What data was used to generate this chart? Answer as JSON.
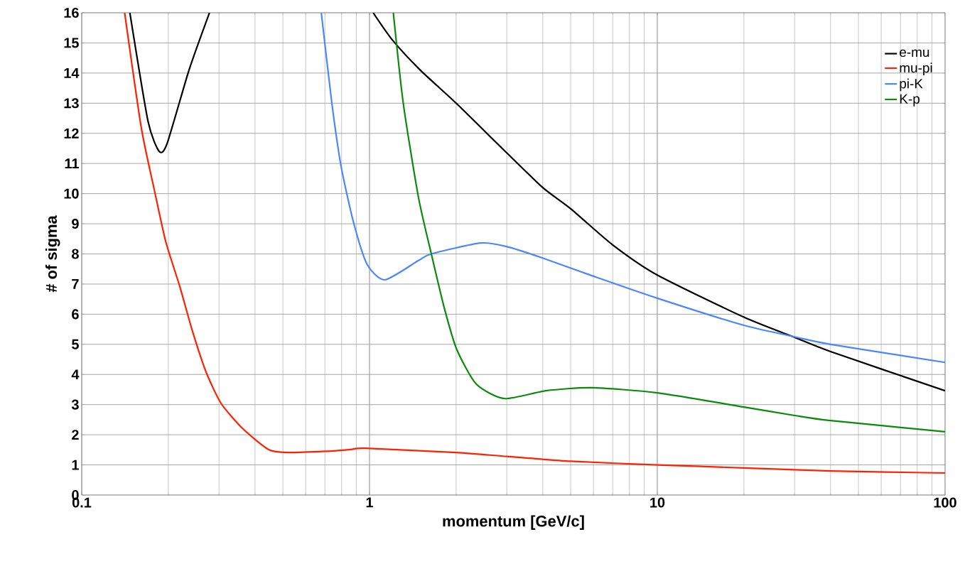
{
  "chart_data": {
    "type": "line",
    "xlabel": "momentum [GeV/c]",
    "ylabel": "# of sigma",
    "log": "x",
    "grid": true,
    "legend": "top right",
    "marker": "none",
    "line_style": "solid",
    "xlim": [
      0.1,
      100
    ],
    "ylim": [
      0,
      16
    ],
    "xticks": [
      0.1,
      1,
      10,
      100
    ],
    "yticks": [
      0,
      1,
      2,
      3,
      4,
      5,
      6,
      7,
      8,
      9,
      10,
      11,
      12,
      13,
      14,
      15,
      16
    ],
    "series": [
      {
        "name": "e-mu",
        "color": "#000000",
        "x": [
          0.147,
          0.17,
          0.186,
          0.198,
          0.236,
          0.278,
          0.5,
          1.03,
          1.2,
          1.5,
          2,
          3,
          4,
          5,
          7,
          10,
          20,
          30,
          40,
          100
        ],
        "values": [
          16,
          12.4,
          11.4,
          11.66,
          14.1,
          16,
          null,
          16,
          15.1,
          14.1,
          13.0,
          11.35,
          10.2,
          9.5,
          8.3,
          7.3,
          5.9,
          5.23,
          4.76,
          3.46
        ]
      },
      {
        "name": "mu-pi",
        "color": "#ff2000",
        "x": [
          0.141,
          0.161,
          0.179,
          0.196,
          0.219,
          0.242,
          0.27,
          0.305,
          0.364,
          0.446,
          0.52,
          0.7,
          0.86,
          0.97,
          2,
          3,
          5,
          10,
          20,
          40,
          100
        ],
        "values": [
          16,
          12.2,
          10.1,
          8.4,
          6.93,
          5.47,
          4.1,
          3.04,
          2.19,
          1.51,
          1.41,
          1.45,
          1.51,
          1.55,
          1.41,
          1.28,
          1.12,
          1.0,
          0.9,
          0.8,
          0.73
        ]
      },
      {
        "name": "pi-K",
        "color": "#4a86ff",
        "x": [
          0.68,
          0.74,
          0.797,
          0.88,
          0.98,
          1.13,
          1.48,
          1.64,
          2.43,
          2.98,
          3.98,
          6.0,
          10,
          20,
          30,
          40,
          100
        ],
        "values": [
          16,
          13.0,
          10.9,
          9.05,
          7.66,
          7.14,
          7.78,
          8.0,
          8.36,
          8.25,
          7.87,
          7.26,
          6.53,
          5.63,
          5.25,
          5.0,
          4.4
        ]
      },
      {
        "name": "K-p",
        "color": "#0a8a0a",
        "x": [
          1.21,
          1.31,
          1.48,
          1.64,
          1.82,
          2.01,
          2.35,
          2.94,
          4.1,
          5.9,
          10,
          20,
          30,
          40,
          100
        ],
        "values": [
          16,
          13.0,
          9.87,
          8.0,
          6.2,
          4.83,
          3.68,
          3.2,
          3.46,
          3.56,
          3.39,
          2.92,
          2.64,
          2.47,
          2.1
        ]
      }
    ]
  }
}
